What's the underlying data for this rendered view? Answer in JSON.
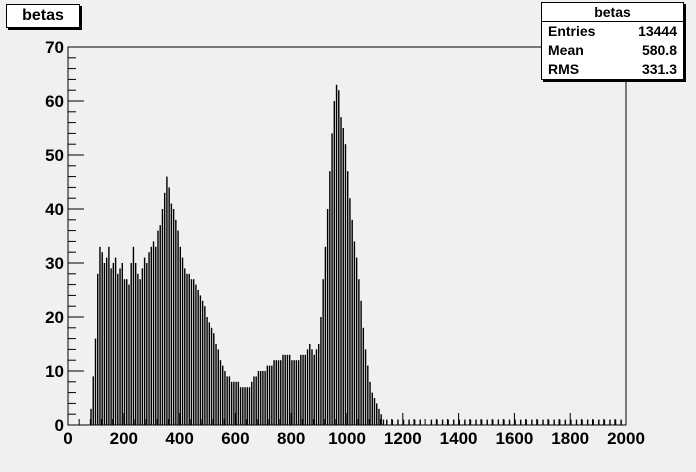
{
  "chart_data": {
    "type": "bar",
    "title": "betas",
    "x_range": [
      0,
      2000
    ],
    "y_range": [
      0,
      70
    ],
    "x_ticks": [
      "0",
      "200",
      "400",
      "600",
      "800",
      "1000",
      "1200",
      "1400",
      "1600",
      "1800",
      "2000"
    ],
    "y_ticks": [
      "0",
      "10",
      "20",
      "30",
      "40",
      "50",
      "60",
      "70"
    ],
    "bin_width": 4,
    "bins": [
      [
        80,
        3
      ],
      [
        88,
        9
      ],
      [
        96,
        16
      ],
      [
        104,
        28
      ],
      [
        112,
        33
      ],
      [
        120,
        32
      ],
      [
        128,
        30
      ],
      [
        136,
        31
      ],
      [
        144,
        33
      ],
      [
        152,
        29
      ],
      [
        160,
        30
      ],
      [
        168,
        31
      ],
      [
        176,
        28
      ],
      [
        184,
        29
      ],
      [
        192,
        30
      ],
      [
        200,
        27
      ],
      [
        208,
        27
      ],
      [
        216,
        26
      ],
      [
        224,
        30
      ],
      [
        232,
        33
      ],
      [
        240,
        30
      ],
      [
        248,
        28
      ],
      [
        256,
        27
      ],
      [
        264,
        29
      ],
      [
        272,
        31
      ],
      [
        280,
        30
      ],
      [
        288,
        32
      ],
      [
        296,
        33
      ],
      [
        304,
        34
      ],
      [
        312,
        33
      ],
      [
        320,
        36
      ],
      [
        328,
        37
      ],
      [
        336,
        40
      ],
      [
        344,
        43
      ],
      [
        352,
        46
      ],
      [
        360,
        44
      ],
      [
        368,
        41
      ],
      [
        376,
        40
      ],
      [
        384,
        38
      ],
      [
        392,
        36
      ],
      [
        400,
        33
      ],
      [
        408,
        31
      ],
      [
        416,
        29
      ],
      [
        424,
        28
      ],
      [
        432,
        28
      ],
      [
        440,
        27
      ],
      [
        448,
        27
      ],
      [
        456,
        26
      ],
      [
        464,
        25
      ],
      [
        472,
        24
      ],
      [
        480,
        23
      ],
      [
        488,
        22
      ],
      [
        496,
        20
      ],
      [
        504,
        19
      ],
      [
        512,
        18
      ],
      [
        520,
        17
      ],
      [
        528,
        15
      ],
      [
        536,
        14
      ],
      [
        544,
        12
      ],
      [
        552,
        11
      ],
      [
        560,
        10
      ],
      [
        568,
        9
      ],
      [
        576,
        9
      ],
      [
        584,
        8
      ],
      [
        592,
        8
      ],
      [
        600,
        8
      ],
      [
        608,
        8
      ],
      [
        616,
        7
      ],
      [
        624,
        7
      ],
      [
        632,
        7
      ],
      [
        640,
        7
      ],
      [
        648,
        7
      ],
      [
        656,
        8
      ],
      [
        664,
        9
      ],
      [
        672,
        9
      ],
      [
        680,
        10
      ],
      [
        688,
        10
      ],
      [
        696,
        10
      ],
      [
        704,
        10
      ],
      [
        712,
        11
      ],
      [
        720,
        11
      ],
      [
        728,
        11
      ],
      [
        736,
        12
      ],
      [
        744,
        12
      ],
      [
        752,
        12
      ],
      [
        760,
        12
      ],
      [
        768,
        13
      ],
      [
        776,
        13
      ],
      [
        784,
        13
      ],
      [
        792,
        13
      ],
      [
        800,
        12
      ],
      [
        808,
        12
      ],
      [
        816,
        12
      ],
      [
        824,
        12
      ],
      [
        832,
        13
      ],
      [
        840,
        13
      ],
      [
        848,
        13
      ],
      [
        856,
        14
      ],
      [
        864,
        15
      ],
      [
        872,
        14
      ],
      [
        880,
        13
      ],
      [
        888,
        14
      ],
      [
        896,
        15
      ],
      [
        904,
        20
      ],
      [
        912,
        27
      ],
      [
        920,
        33
      ],
      [
        928,
        40
      ],
      [
        936,
        47
      ],
      [
        944,
        54
      ],
      [
        952,
        60
      ],
      [
        960,
        63
      ],
      [
        968,
        62
      ],
      [
        976,
        57
      ],
      [
        984,
        55
      ],
      [
        992,
        52
      ],
      [
        1000,
        47
      ],
      [
        1008,
        42
      ],
      [
        1016,
        38
      ],
      [
        1024,
        34
      ],
      [
        1032,
        31
      ],
      [
        1040,
        27
      ],
      [
        1048,
        23
      ],
      [
        1056,
        18
      ],
      [
        1064,
        14
      ],
      [
        1072,
        11
      ],
      [
        1080,
        8
      ],
      [
        1088,
        6
      ],
      [
        1096,
        5
      ],
      [
        1104,
        4
      ],
      [
        1112,
        3
      ],
      [
        1120,
        2
      ],
      [
        1128,
        1
      ],
      [
        1140,
        1
      ],
      [
        1160,
        1
      ],
      [
        1180,
        1
      ],
      [
        1200,
        1
      ],
      [
        1220,
        1
      ],
      [
        1240,
        1
      ],
      [
        1260,
        1
      ],
      [
        1300,
        1
      ],
      [
        1320,
        1
      ],
      [
        1340,
        1
      ],
      [
        1360,
        1
      ],
      [
        1380,
        1
      ],
      [
        1400,
        1
      ],
      [
        1420,
        1
      ],
      [
        1440,
        1
      ],
      [
        1460,
        1
      ],
      [
        1480,
        1
      ],
      [
        1500,
        1
      ],
      [
        1520,
        1
      ],
      [
        1540,
        1
      ],
      [
        1560,
        1
      ],
      [
        1580,
        1
      ],
      [
        1600,
        1
      ],
      [
        1620,
        1
      ],
      [
        1640,
        1
      ],
      [
        1660,
        1
      ],
      [
        1680,
        1
      ],
      [
        1700,
        1
      ],
      [
        1720,
        1
      ],
      [
        1740,
        1
      ],
      [
        1760,
        1
      ],
      [
        1780,
        1
      ],
      [
        1800,
        1
      ],
      [
        1820,
        1
      ],
      [
        1840,
        1
      ],
      [
        1860,
        1
      ],
      [
        1880,
        1
      ],
      [
        1900,
        1
      ],
      [
        1920,
        1
      ],
      [
        1940,
        1
      ],
      [
        1960,
        1
      ],
      [
        1980,
        1
      ]
    ]
  },
  "stats": {
    "title": "betas",
    "rows": [
      {
        "label": "Entries",
        "value": "13444"
      },
      {
        "label": "Mean",
        "value": "580.8"
      },
      {
        "label": "RMS",
        "value": "331.3"
      }
    ]
  }
}
